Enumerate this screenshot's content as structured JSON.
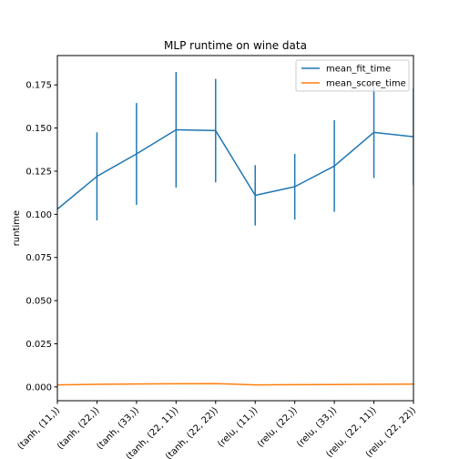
{
  "chart_data": {
    "type": "line",
    "title": "MLP runtime on wine data",
    "xlabel": "",
    "ylabel": "runtime",
    "categories": [
      "(tanh, (11,))",
      "(tanh, (22,))",
      "(tanh, (33,))",
      "(tanh, (22, 11))",
      "(tanh, (22, 22))",
      "(relu, (11,))",
      "(relu, (22,))",
      "(relu, (33,))",
      "(relu, (22, 11))",
      "(relu, (22, 22))"
    ],
    "ylim": [
      -0.008,
      0.192
    ],
    "yticks": [
      "0.000",
      "0.025",
      "0.050",
      "0.075",
      "0.100",
      "0.125",
      "0.150",
      "0.175"
    ],
    "grid": false,
    "legend_position": "top-right",
    "series": [
      {
        "name": "mean_fit_time",
        "color": "#1f77b4",
        "values": [
          0.103,
          0.122,
          0.135,
          0.149,
          0.1485,
          0.111,
          0.116,
          0.128,
          0.1475,
          0.145
        ],
        "errors": [
          0.0,
          0.0255,
          0.0295,
          0.0335,
          0.03,
          0.0175,
          0.019,
          0.0265,
          0.0265,
          0.028
        ]
      },
      {
        "name": "mean_score_time",
        "color": "#ff7f0e",
        "values": [
          0.0012,
          0.0015,
          0.0017,
          0.0018,
          0.0019,
          0.0012,
          0.0013,
          0.0014,
          0.0015,
          0.0016
        ],
        "errors": [
          0,
          0,
          0,
          0,
          0,
          0,
          0,
          0,
          0,
          0
        ]
      }
    ]
  }
}
